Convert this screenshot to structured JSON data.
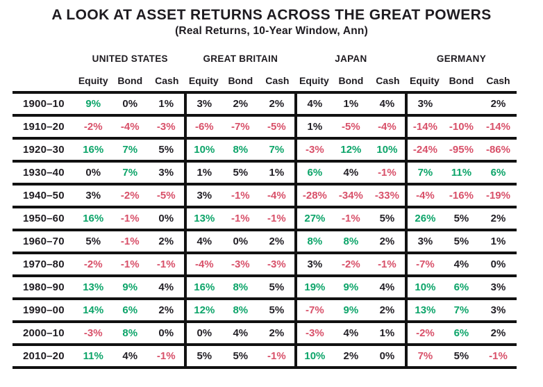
{
  "title": "A LOOK AT ASSET RETURNS ACROSS THE GREAT POWERS",
  "subtitle": "(Real Returns, 10-Year Window, Ann)",
  "colors": {
    "g": "#0ca469",
    "r": "#d85069",
    "k": "#232026"
  },
  "chart_data": {
    "type": "table",
    "title": "A LOOK AT ASSET RETURNS ACROSS THE GREAT POWERS",
    "subtitle": "(Real Returns, 10-Year Window, Ann)",
    "column_groups": [
      "UNITED STATES",
      "GREAT BRITAIN",
      "JAPAN",
      "GERMANY"
    ],
    "sub_columns": [
      "Equity",
      "Bond",
      "Cash"
    ],
    "color_legend": {
      "g": "green (strong positive)",
      "r": "red (negative)",
      "k": "black (neutral)"
    },
    "rows": [
      {
        "period": "1900–10",
        "values": [
          "9%",
          "0%",
          "1%",
          "3%",
          "2%",
          "2%",
          "4%",
          "1%",
          "4%",
          "3%",
          "",
          "2%"
        ],
        "colors": [
          "g",
          "k",
          "k",
          "k",
          "k",
          "k",
          "k",
          "k",
          "k",
          "k",
          "k",
          "k"
        ]
      },
      {
        "period": "1910–20",
        "values": [
          "-2%",
          "-4%",
          "-3%",
          "-6%",
          "-7%",
          "-5%",
          "1%",
          "-5%",
          "-4%",
          "-14%",
          "-10%",
          "-14%"
        ],
        "colors": [
          "r",
          "r",
          "r",
          "r",
          "r",
          "r",
          "k",
          "r",
          "r",
          "r",
          "r",
          "r"
        ]
      },
      {
        "period": "1920–30",
        "values": [
          "16%",
          "7%",
          "5%",
          "10%",
          "8%",
          "7%",
          "-3%",
          "12%",
          "10%",
          "-24%",
          "-95%",
          "-86%"
        ],
        "colors": [
          "g",
          "g",
          "k",
          "g",
          "g",
          "g",
          "r",
          "g",
          "g",
          "r",
          "r",
          "r"
        ]
      },
      {
        "period": "1930–40",
        "values": [
          "0%",
          "7%",
          "3%",
          "1%",
          "5%",
          "1%",
          "6%",
          "4%",
          "-1%",
          "7%",
          "11%",
          "6%"
        ],
        "colors": [
          "k",
          "g",
          "k",
          "k",
          "k",
          "k",
          "g",
          "k",
          "r",
          "g",
          "g",
          "g"
        ]
      },
      {
        "period": "1940–50",
        "values": [
          "3%",
          "-2%",
          "-5%",
          "3%",
          "-1%",
          "-4%",
          "-28%",
          "-34%",
          "-33%",
          "-4%",
          "-16%",
          "-19%"
        ],
        "colors": [
          "k",
          "r",
          "r",
          "k",
          "r",
          "r",
          "r",
          "r",
          "r",
          "r",
          "r",
          "r"
        ]
      },
      {
        "period": "1950–60",
        "values": [
          "16%",
          "-1%",
          "0%",
          "13%",
          "-1%",
          "-1%",
          "27%",
          "-1%",
          "5%",
          "26%",
          "5%",
          "2%"
        ],
        "colors": [
          "g",
          "r",
          "k",
          "g",
          "r",
          "r",
          "g",
          "r",
          "k",
          "g",
          "k",
          "k"
        ]
      },
      {
        "period": "1960–70",
        "values": [
          "5%",
          "-1%",
          "2%",
          "4%",
          "0%",
          "2%",
          "8%",
          "8%",
          "2%",
          "3%",
          "5%",
          "1%"
        ],
        "colors": [
          "k",
          "r",
          "k",
          "k",
          "k",
          "k",
          "g",
          "g",
          "k",
          "k",
          "k",
          "k"
        ]
      },
      {
        "period": "1970–80",
        "values": [
          "-2%",
          "-1%",
          "-1%",
          "-4%",
          "-3%",
          "-3%",
          "3%",
          "-2%",
          "-1%",
          "-7%",
          "4%",
          "0%"
        ],
        "colors": [
          "r",
          "r",
          "r",
          "r",
          "r",
          "r",
          "k",
          "r",
          "r",
          "r",
          "k",
          "k"
        ]
      },
      {
        "period": "1980–90",
        "values": [
          "13%",
          "9%",
          "4%",
          "16%",
          "8%",
          "5%",
          "19%",
          "9%",
          "4%",
          "10%",
          "6%",
          "3%"
        ],
        "colors": [
          "g",
          "g",
          "k",
          "g",
          "g",
          "k",
          "g",
          "g",
          "k",
          "g",
          "g",
          "k"
        ]
      },
      {
        "period": "1990–00",
        "values": [
          "14%",
          "6%",
          "2%",
          "12%",
          "8%",
          "5%",
          "-7%",
          "9%",
          "2%",
          "13%",
          "7%",
          "3%"
        ],
        "colors": [
          "g",
          "g",
          "k",
          "g",
          "g",
          "k",
          "r",
          "g",
          "k",
          "g",
          "g",
          "k"
        ]
      },
      {
        "period": "2000–10",
        "values": [
          "-3%",
          "8%",
          "0%",
          "0%",
          "4%",
          "2%",
          "-3%",
          "4%",
          "1%",
          "-2%",
          "6%",
          "2%"
        ],
        "colors": [
          "r",
          "g",
          "k",
          "k",
          "k",
          "k",
          "r",
          "k",
          "k",
          "r",
          "g",
          "k"
        ]
      },
      {
        "period": "2010–20",
        "values": [
          "11%",
          "4%",
          "-1%",
          "5%",
          "5%",
          "-1%",
          "10%",
          "2%",
          "0%",
          "7%",
          "5%",
          "-1%"
        ],
        "colors": [
          "g",
          "k",
          "r",
          "k",
          "k",
          "r",
          "g",
          "k",
          "k",
          "r",
          "k",
          "r"
        ]
      }
    ]
  }
}
